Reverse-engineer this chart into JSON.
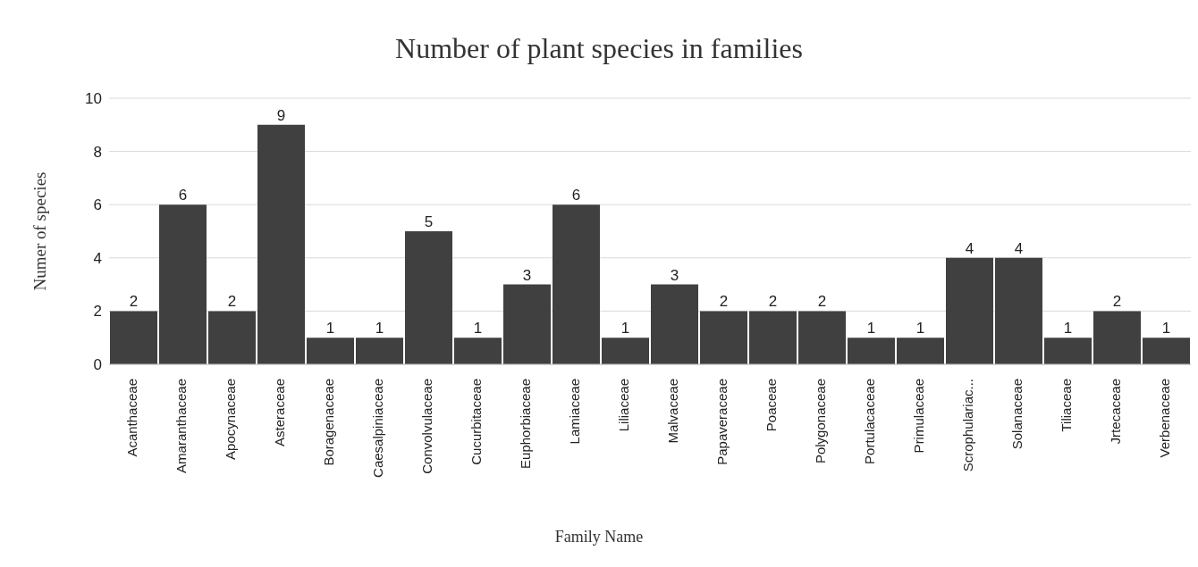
{
  "chart_data": {
    "type": "bar",
    "title": "Number of plant species in families",
    "xlabel": "Family Name",
    "ylabel": "Numer of species",
    "categories": [
      "Acanthaceae",
      "Amaranthaceae",
      "Apocynaceae",
      "Asteraceae",
      "Boragenaceae",
      "Caesalpiniaceae",
      "Convolvulaceae",
      "Cucurbitaceae",
      "Euphorbiaceae",
      "Lamiaceae",
      "Liliaceae",
      "Malvaceae",
      "Papaveraceae",
      "Poaceae",
      "Polygonaceae",
      "Portulacaceae",
      "Primulaceae",
      "Scrophulariac...",
      "Solanaceae",
      "Tiliaceae",
      "Jrtecaceae",
      "Verbenaceae"
    ],
    "values": [
      2,
      6,
      2,
      9,
      1,
      1,
      5,
      1,
      3,
      6,
      1,
      3,
      2,
      2,
      2,
      1,
      1,
      4,
      4,
      1,
      2,
      1
    ],
    "color": "#404040",
    "ylim": [
      0,
      10
    ],
    "yticks": [
      0,
      2,
      4,
      6,
      8,
      10
    ],
    "grid": "y",
    "data_labels": true
  }
}
